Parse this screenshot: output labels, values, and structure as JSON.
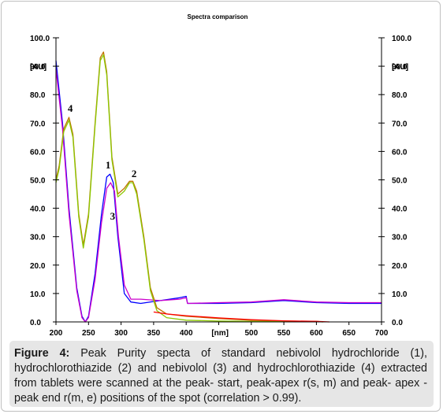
{
  "chart_data": {
    "type": "line",
    "title": "Spectra comparison",
    "xlabel": "[nm]",
    "ylabel_left": "[AU]",
    "ylabel_right": "[AU]",
    "xlim": [
      200,
      700
    ],
    "ylim": [
      0,
      100
    ],
    "x_ticks": [
      "200",
      "250",
      "300",
      "350",
      "400",
      "450",
      "500",
      "550",
      "600",
      "650",
      "700"
    ],
    "y_ticks": [
      "0.0",
      "10.0",
      "20.0",
      "30.0",
      "40.0",
      "50.0",
      "60.0",
      "70.0",
      "80.0",
      "90.0",
      "100.0"
    ],
    "series": [
      {
        "color": "#0000ff",
        "points": [
          [
            200,
            92
          ],
          [
            210,
            70
          ],
          [
            220,
            40
          ],
          [
            232,
            12
          ],
          [
            240,
            2
          ],
          [
            245,
            0
          ],
          [
            250,
            2
          ],
          [
            260,
            17
          ],
          [
            270,
            38
          ],
          [
            278,
            51
          ],
          [
            283,
            52
          ],
          [
            288,
            49
          ],
          [
            295,
            30
          ],
          [
            305,
            10
          ],
          [
            315,
            7
          ],
          [
            330,
            6.5
          ],
          [
            360,
            7.5
          ],
          [
            390,
            8.5
          ],
          [
            400,
            9
          ],
          [
            402,
            6.5
          ],
          [
            450,
            6.5
          ],
          [
            500,
            6.8
          ],
          [
            550,
            7.5
          ],
          [
            600,
            6.8
          ],
          [
            650,
            6.5
          ],
          [
            700,
            6.5
          ]
        ]
      },
      {
        "color": "#cc00cc",
        "points": [
          [
            200,
            89
          ],
          [
            210,
            68
          ],
          [
            220,
            38
          ],
          [
            232,
            11
          ],
          [
            240,
            1.5
          ],
          [
            245,
            0
          ],
          [
            250,
            1.5
          ],
          [
            260,
            15
          ],
          [
            270,
            35
          ],
          [
            278,
            47
          ],
          [
            284,
            49
          ],
          [
            290,
            46
          ],
          [
            296,
            30
          ],
          [
            305,
            13
          ],
          [
            315,
            8
          ],
          [
            330,
            8
          ],
          [
            360,
            7.5
          ],
          [
            390,
            8
          ],
          [
            400,
            8.5
          ],
          [
            402,
            6.5
          ],
          [
            450,
            6.8
          ],
          [
            500,
            7
          ],
          [
            550,
            7.8
          ],
          [
            600,
            7
          ],
          [
            650,
            6.8
          ],
          [
            700,
            6.8
          ]
        ]
      },
      {
        "color": "#c07000",
        "points": [
          [
            200,
            50
          ],
          [
            205,
            55
          ],
          [
            212,
            68
          ],
          [
            220,
            72
          ],
          [
            226,
            66
          ],
          [
            235,
            38
          ],
          [
            242,
            27
          ],
          [
            250,
            38
          ],
          [
            260,
            70
          ],
          [
            268,
            93
          ],
          [
            273,
            95
          ],
          [
            278,
            88
          ],
          [
            286,
            58
          ],
          [
            295,
            45
          ],
          [
            305,
            47
          ],
          [
            313,
            49.5
          ],
          [
            318,
            49.5
          ],
          [
            324,
            46
          ],
          [
            335,
            30
          ],
          [
            345,
            12
          ],
          [
            355,
            5
          ],
          [
            370,
            2.8
          ],
          [
            400,
            2
          ],
          [
            450,
            1.2
          ],
          [
            500,
            0.6
          ],
          [
            550,
            0.3
          ],
          [
            600,
            0.2
          ],
          [
            610,
            0
          ]
        ]
      },
      {
        "color": "#8cc800",
        "points": [
          [
            200,
            49
          ],
          [
            205,
            54
          ],
          [
            212,
            67
          ],
          [
            220,
            71
          ],
          [
            226,
            65
          ],
          [
            235,
            37
          ],
          [
            242,
            26
          ],
          [
            250,
            37
          ],
          [
            260,
            69
          ],
          [
            268,
            92
          ],
          [
            273,
            94
          ],
          [
            278,
            87
          ],
          [
            286,
            57
          ],
          [
            295,
            44
          ],
          [
            305,
            46
          ],
          [
            313,
            49
          ],
          [
            318,
            49
          ],
          [
            324,
            45
          ],
          [
            335,
            29
          ],
          [
            345,
            11
          ],
          [
            355,
            4
          ],
          [
            370,
            1.5
          ],
          [
            400,
            0.6
          ],
          [
            450,
            0.3
          ],
          [
            500,
            0.2
          ],
          [
            550,
            0.1
          ],
          [
            600,
            0.1
          ],
          [
            610,
            0
          ]
        ]
      },
      {
        "color": "#ff0000",
        "points": [
          [
            350,
            3.5
          ],
          [
            370,
            2.8
          ],
          [
            400,
            2.2
          ],
          [
            450,
            1.4
          ],
          [
            500,
            0.8
          ],
          [
            550,
            0.4
          ],
          [
            600,
            0.2
          ],
          [
            620,
            0
          ]
        ]
      }
    ],
    "annotations": [
      {
        "text": "4",
        "x": 222,
        "y": 74
      },
      {
        "text": "1",
        "x": 280,
        "y": 54
      },
      {
        "text": "2",
        "x": 320,
        "y": 51
      },
      {
        "text": "3",
        "x": 287,
        "y": 36
      }
    ]
  },
  "caption": {
    "prefix": "Figure 4:",
    "text": " Peak Purity specta of standard nebivolol hydrochloride (1), hydrochlorothiazide (2) and nebivolol (3) and hydrochlorothiazide (4) extracted from tablets were scanned at the peak- start,  peak-apex r(s, m) and  peak- apex -peak end r(m, e) positions of the spot (correlation > 0.99)."
  }
}
